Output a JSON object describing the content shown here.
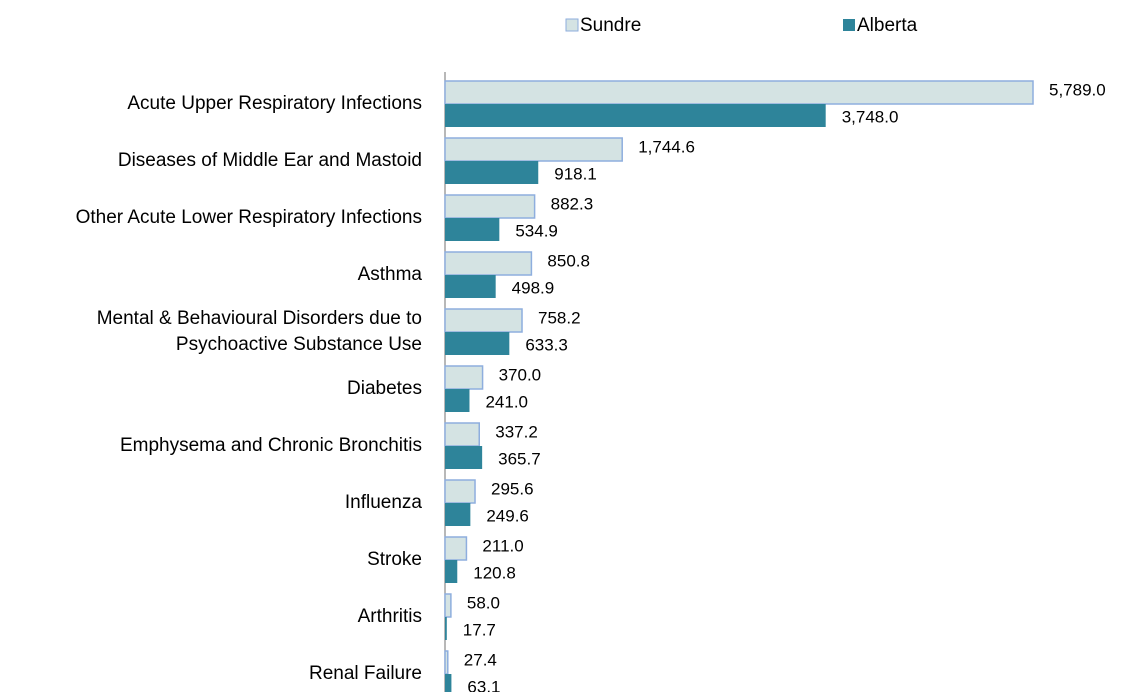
{
  "chart_data": {
    "type": "bar",
    "orientation": "horizontal",
    "categories": [
      "Acute Upper Respiratory Infections",
      "Diseases of Middle Ear and Mastoid",
      "Other Acute Lower Respiratory Infections",
      "Asthma",
      "Mental & Behavioural Disorders due to Psychoactive Substance Use",
      "Diabetes",
      "Emphysema and Chronic Bronchitis",
      "Influenza",
      "Stroke",
      "Arthritis",
      "Renal Failure"
    ],
    "series": [
      {
        "name": "Sundre",
        "color": "#d4e3e3",
        "edge_color": "#8eaede",
        "values": [
          5789.0,
          1744.6,
          882.3,
          850.8,
          758.2,
          370.0,
          337.2,
          295.6,
          211.0,
          58.0,
          27.4
        ],
        "value_labels": [
          "5,789.0",
          "1,744.6",
          "882.3",
          "850.8",
          "758.2",
          "370.0",
          "337.2",
          "295.6",
          "211.0",
          "58.0",
          "27.4"
        ]
      },
      {
        "name": "Alberta",
        "color": "#2e849a",
        "values": [
          3748.0,
          918.1,
          534.9,
          498.9,
          633.3,
          241.0,
          365.7,
          249.6,
          120.8,
          17.7,
          63.1
        ],
        "value_labels": [
          "3,748.0",
          "918.1",
          "534.9",
          "498.9",
          "633.3",
          "241.0",
          "365.7",
          "249.6",
          "120.8",
          "17.7",
          "63.1"
        ]
      }
    ],
    "xlim": [
      0,
      6000
    ],
    "legend": "top"
  }
}
